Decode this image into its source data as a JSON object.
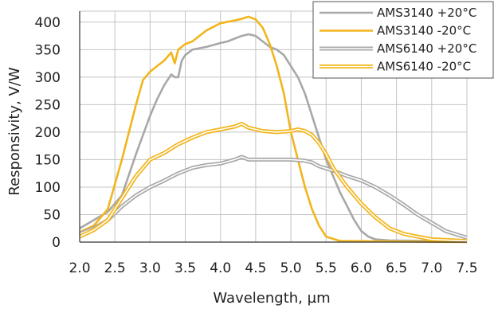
{
  "chart_data": {
    "type": "line",
    "xlabel": "Wavelength, µm",
    "ylabel": "Responsivity, V/W",
    "xlim": [
      2.0,
      7.5
    ],
    "ylim": [
      0,
      420
    ],
    "x_ticks": [
      "2.0",
      "2.5",
      "3.0",
      "3.5",
      "4.0",
      "4.5",
      "5.0",
      "5.5",
      "6.0",
      "6.5",
      "7.0",
      "7.5"
    ],
    "y_ticks": [
      "0",
      "50",
      "100",
      "150",
      "200",
      "250",
      "300",
      "350",
      "400"
    ],
    "grid": true,
    "legend_position": "top-right",
    "series": [
      {
        "name": "AMS3140 +20°C",
        "color": "#a8a8a8",
        "style": "single",
        "points": [
          [
            2.0,
            25
          ],
          [
            2.2,
            40
          ],
          [
            2.4,
            55
          ],
          [
            2.6,
            85
          ],
          [
            2.8,
            160
          ],
          [
            3.0,
            230
          ],
          [
            3.1,
            260
          ],
          [
            3.2,
            285
          ],
          [
            3.3,
            305
          ],
          [
            3.35,
            300
          ],
          [
            3.4,
            300
          ],
          [
            3.45,
            330
          ],
          [
            3.5,
            340
          ],
          [
            3.6,
            350
          ],
          [
            3.8,
            355
          ],
          [
            4.0,
            362
          ],
          [
            4.1,
            365
          ],
          [
            4.2,
            370
          ],
          [
            4.3,
            375
          ],
          [
            4.4,
            378
          ],
          [
            4.5,
            375
          ],
          [
            4.6,
            365
          ],
          [
            4.7,
            355
          ],
          [
            4.8,
            350
          ],
          [
            4.9,
            340
          ],
          [
            5.0,
            320
          ],
          [
            5.1,
            300
          ],
          [
            5.2,
            270
          ],
          [
            5.3,
            230
          ],
          [
            5.4,
            190
          ],
          [
            5.5,
            150
          ],
          [
            5.6,
            120
          ],
          [
            5.7,
            90
          ],
          [
            5.8,
            65
          ],
          [
            5.9,
            40
          ],
          [
            6.0,
            20
          ],
          [
            6.1,
            10
          ],
          [
            6.2,
            5
          ],
          [
            6.4,
            3
          ],
          [
            7.0,
            2
          ],
          [
            7.5,
            2
          ]
        ]
      },
      {
        "name": "AMS3140 -20°C",
        "color": "#f2b51d",
        "style": "single",
        "points": [
          [
            2.0,
            18
          ],
          [
            2.2,
            30
          ],
          [
            2.4,
            60
          ],
          [
            2.6,
            150
          ],
          [
            2.8,
            250
          ],
          [
            2.9,
            295
          ],
          [
            3.0,
            310
          ],
          [
            3.1,
            320
          ],
          [
            3.2,
            330
          ],
          [
            3.3,
            345
          ],
          [
            3.35,
            325
          ],
          [
            3.4,
            350
          ],
          [
            3.5,
            360
          ],
          [
            3.6,
            365
          ],
          [
            3.8,
            385
          ],
          [
            4.0,
            398
          ],
          [
            4.2,
            403
          ],
          [
            4.3,
            406
          ],
          [
            4.4,
            410
          ],
          [
            4.5,
            405
          ],
          [
            4.6,
            390
          ],
          [
            4.7,
            360
          ],
          [
            4.8,
            320
          ],
          [
            4.9,
            270
          ],
          [
            5.0,
            200
          ],
          [
            5.1,
            150
          ],
          [
            5.2,
            100
          ],
          [
            5.3,
            60
          ],
          [
            5.4,
            30
          ],
          [
            5.5,
            10
          ],
          [
            5.7,
            2
          ],
          [
            7.5,
            0
          ]
        ]
      },
      {
        "name": "AMS6140 +20°C",
        "color": "#a8a8a8",
        "style": "double",
        "points": [
          [
            2.0,
            15
          ],
          [
            2.2,
            25
          ],
          [
            2.4,
            40
          ],
          [
            2.6,
            65
          ],
          [
            2.8,
            85
          ],
          [
            3.0,
            100
          ],
          [
            3.2,
            112
          ],
          [
            3.4,
            125
          ],
          [
            3.6,
            135
          ],
          [
            3.8,
            140
          ],
          [
            4.0,
            143
          ],
          [
            4.2,
            150
          ],
          [
            4.3,
            155
          ],
          [
            4.4,
            150
          ],
          [
            4.6,
            150
          ],
          [
            4.8,
            150
          ],
          [
            5.0,
            150
          ],
          [
            5.2,
            148
          ],
          [
            5.3,
            145
          ],
          [
            5.4,
            138
          ],
          [
            5.6,
            130
          ],
          [
            5.8,
            120
          ],
          [
            6.0,
            112
          ],
          [
            6.2,
            100
          ],
          [
            6.4,
            85
          ],
          [
            6.6,
            68
          ],
          [
            6.8,
            50
          ],
          [
            7.0,
            35
          ],
          [
            7.2,
            20
          ],
          [
            7.5,
            8
          ]
        ]
      },
      {
        "name": "AMS6140 -20°C",
        "color": "#f2b51d",
        "style": "double",
        "points": [
          [
            2.0,
            10
          ],
          [
            2.2,
            22
          ],
          [
            2.4,
            40
          ],
          [
            2.6,
            80
          ],
          [
            2.8,
            120
          ],
          [
            3.0,
            150
          ],
          [
            3.2,
            162
          ],
          [
            3.4,
            178
          ],
          [
            3.6,
            190
          ],
          [
            3.8,
            200
          ],
          [
            4.0,
            205
          ],
          [
            4.2,
            210
          ],
          [
            4.3,
            215
          ],
          [
            4.4,
            208
          ],
          [
            4.6,
            202
          ],
          [
            4.8,
            200
          ],
          [
            5.0,
            202
          ],
          [
            5.1,
            205
          ],
          [
            5.2,
            202
          ],
          [
            5.3,
            195
          ],
          [
            5.4,
            180
          ],
          [
            5.5,
            160
          ],
          [
            5.6,
            135
          ],
          [
            5.8,
            100
          ],
          [
            6.0,
            70
          ],
          [
            6.2,
            45
          ],
          [
            6.4,
            25
          ],
          [
            6.6,
            15
          ],
          [
            6.8,
            10
          ],
          [
            7.0,
            5
          ],
          [
            7.5,
            2
          ]
        ]
      }
    ]
  }
}
